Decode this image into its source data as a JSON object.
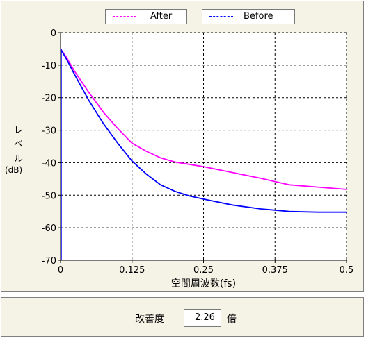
{
  "legend": {
    "after_label": "After",
    "before_label": "Before"
  },
  "colors": {
    "after": "#ff00ff",
    "before": "#0000ff",
    "panel": "#f5f2e6"
  },
  "chart_data": {
    "type": "line",
    "xlabel": "空間周波数(fs)",
    "ylabel_chars": [
      "レ",
      "ベ",
      "ル"
    ],
    "ylabel_unit": "(dB)",
    "xlim": [
      0,
      0.5
    ],
    "ylim": [
      -70,
      0
    ],
    "x_ticks": [
      {
        "value": 0,
        "label": "0"
      },
      {
        "value": 0.125,
        "label": "0.125"
      },
      {
        "value": 0.25,
        "label": "0.25"
      },
      {
        "value": 0.375,
        "label": "0.375"
      },
      {
        "value": 0.5,
        "label": "0.5"
      }
    ],
    "y_ticks": [
      {
        "value": 0,
        "label": "0"
      },
      {
        "value": -10,
        "label": "-10"
      },
      {
        "value": -20,
        "label": "-20"
      },
      {
        "value": -30,
        "label": "-30"
      },
      {
        "value": -40,
        "label": "-40"
      },
      {
        "value": -50,
        "label": "-50"
      },
      {
        "value": -60,
        "label": "-60"
      },
      {
        "value": -70,
        "label": "-70"
      }
    ],
    "grid": true,
    "series": [
      {
        "name": "After",
        "color": "#ff00ff",
        "points": [
          [
            0,
            -5
          ],
          [
            0.01,
            -7.5
          ],
          [
            0.025,
            -12
          ],
          [
            0.05,
            -18.5
          ],
          [
            0.075,
            -24.5
          ],
          [
            0.1,
            -29.5
          ],
          [
            0.125,
            -34
          ],
          [
            0.15,
            -36.5
          ],
          [
            0.175,
            -38.5
          ],
          [
            0.2,
            -39.8
          ],
          [
            0.225,
            -40.5
          ],
          [
            0.25,
            -41.2
          ],
          [
            0.3,
            -43
          ],
          [
            0.35,
            -44.8
          ],
          [
            0.375,
            -45.8
          ],
          [
            0.4,
            -46.8
          ],
          [
            0.45,
            -47.5
          ],
          [
            0.5,
            -48.2
          ]
        ]
      },
      {
        "name": "Before",
        "color": "#0000ff",
        "points": [
          [
            0,
            -5
          ],
          [
            0.01,
            -8
          ],
          [
            0.025,
            -13
          ],
          [
            0.05,
            -21
          ],
          [
            0.075,
            -28
          ],
          [
            0.1,
            -34
          ],
          [
            0.125,
            -39.5
          ],
          [
            0.15,
            -43.5
          ],
          [
            0.175,
            -46.8
          ],
          [
            0.2,
            -48.8
          ],
          [
            0.225,
            -50.2
          ],
          [
            0.25,
            -51.2
          ],
          [
            0.3,
            -53
          ],
          [
            0.35,
            -54.2
          ],
          [
            0.375,
            -54.6
          ],
          [
            0.4,
            -55
          ],
          [
            0.45,
            -55.2
          ],
          [
            0.5,
            -55.2
          ]
        ]
      }
    ]
  },
  "improvement": {
    "label": "改善度",
    "value": "2.26",
    "unit": "倍"
  }
}
